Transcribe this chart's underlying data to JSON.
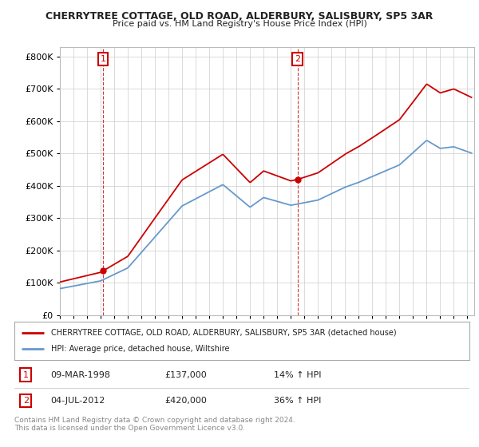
{
  "title": "CHERRYTREE COTTAGE, OLD ROAD, ALDERBURY, SALISBURY, SP5 3AR",
  "subtitle": "Price paid vs. HM Land Registry's House Price Index (HPI)",
  "legend_line1": "CHERRYTREE COTTAGE, OLD ROAD, ALDERBURY, SALISBURY, SP5 3AR (detached house)",
  "legend_line2": "HPI: Average price, detached house, Wiltshire",
  "sale1_date": "09-MAR-1998",
  "sale1_price": "£137,000",
  "sale1_hpi": "14% ↑ HPI",
  "sale2_date": "04-JUL-2012",
  "sale2_price": "£420,000",
  "sale2_hpi": "36% ↑ HPI",
  "footer": "Contains HM Land Registry data © Crown copyright and database right 2024.\nThis data is licensed under the Open Government Licence v3.0.",
  "ylim": [
    0,
    830000
  ],
  "yticks": [
    0,
    100000,
    200000,
    300000,
    400000,
    500000,
    600000,
    700000,
    800000
  ],
  "background_color": "#ffffff",
  "grid_color": "#cccccc",
  "red_color": "#cc0000",
  "blue_color": "#6699cc",
  "marker1_year": 1998.18,
  "marker1_value": 137000,
  "marker2_year": 2012.5,
  "marker2_value": 420000,
  "xmin": 1995,
  "xmax": 2025.5
}
